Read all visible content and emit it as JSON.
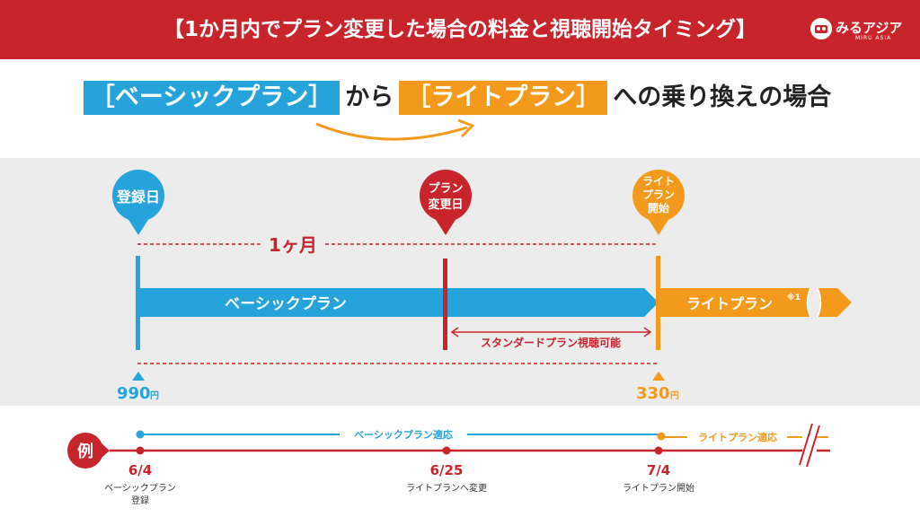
{
  "header": {
    "title": "【1か月内でプラン変更した場合の料金と視聴開始タイミング】",
    "logo_text": "みるアジア",
    "logo_sub": "MIRU ASIA"
  },
  "subtitle": {
    "from_plan": "［ベーシックプラン］",
    "connector": "から",
    "to_plan": "［ライトプラン］",
    "suffix": "への乗り換えの場合"
  },
  "markers": {
    "register": "登録日",
    "change_line1": "プラン",
    "change_line2": "変更日",
    "lite_line1": "ライト",
    "lite_line2": "プラン",
    "lite_line3": "開始"
  },
  "timeline": {
    "period_label": "1ヶ月",
    "basic_plan": "ベーシックプラン",
    "lite_plan": "ライトプラン",
    "lite_note": "※1",
    "standard_label": "スタンダードプラン視聴可能",
    "basic_price": "990",
    "lite_price": "330",
    "currency": "円"
  },
  "example": {
    "badge": "例",
    "basic_apply": "ベーシックプラン適応",
    "lite_apply": "ライトプラン適応",
    "dates": [
      "6/4",
      "6/25",
      "7/4"
    ],
    "captions": [
      [
        "ベーシックプラン",
        "登録"
      ],
      [
        "ライトプランへ変更"
      ],
      [
        "ライトプラン開始"
      ]
    ]
  },
  "colors": {
    "red": "#c8242b",
    "blue": "#27a3dc",
    "orange": "#f39a1d",
    "band": "#ececec"
  }
}
